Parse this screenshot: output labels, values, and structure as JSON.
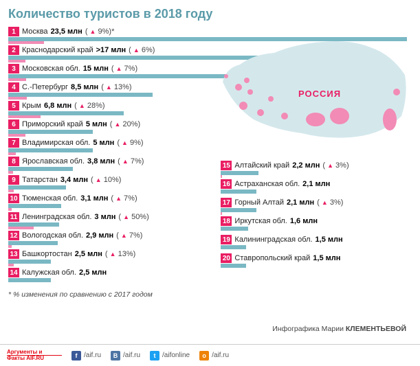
{
  "title": "Количество туристов в 2018 году",
  "max_value": 23.5,
  "bar_colors": {
    "teal": "#7ab8c4",
    "pink": "#f28bb5"
  },
  "rank_bg": "#e91e63",
  "triangle_color": "#e91e63",
  "left": [
    {
      "rank": "1",
      "region": "Москва",
      "value": "23,5",
      "unit": "млн",
      "change": "9%",
      "star": true,
      "bar": 23.5,
      "pink": 2.1
    },
    {
      "rank": "2",
      "region": "Краснодарский край",
      "value": ">17",
      "unit": "млн",
      "change": "6%",
      "bar": 17,
      "pink": 1.0
    },
    {
      "rank": "3",
      "region": "Московская обл.",
      "value": "15",
      "unit": "млн",
      "change": "7%",
      "bar": 15,
      "pink": 1.05
    },
    {
      "rank": "4",
      "region": "С.-Петербург",
      "value": "8,5",
      "unit": "млн",
      "change": "13%",
      "bar": 8.5,
      "pink": 1.1
    },
    {
      "rank": "5",
      "region": "Крым",
      "value": "6,8",
      "unit": "млн",
      "change": "28%",
      "bar": 6.8,
      "pink": 1.9
    },
    {
      "rank": "6",
      "region": "Приморский край",
      "value": "5",
      "unit": "млн",
      "change": "20%",
      "bar": 5,
      "pink": 1.0
    },
    {
      "rank": "7",
      "region": "Владимирская обл.",
      "value": "5",
      "unit": "млн",
      "change": "9%",
      "bar": 5,
      "pink": 0.45
    },
    {
      "rank": "8",
      "region": "Ярославская обл.",
      "value": "3,8",
      "unit": "млн",
      "change": "7%",
      "bar": 3.8,
      "pink": 0.27
    },
    {
      "rank": "9",
      "region": "Татарстан",
      "value": "3,4",
      "unit": "млн",
      "change": "10%",
      "bar": 3.4,
      "pink": 0.34
    },
    {
      "rank": "10",
      "region": "Тюменская обл.",
      "value": "3,1",
      "unit": "млн",
      "change": "7%",
      "bar": 3.1,
      "pink": 0.22
    },
    {
      "rank": "11",
      "region": "Ленинградская обл.",
      "value": "3",
      "unit": "млн",
      "change": "50%",
      "bar": 3,
      "pink": 1.5
    },
    {
      "rank": "12",
      "region": "Вологодская обл.",
      "value": "2,9",
      "unit": "млн",
      "change": "7%",
      "bar": 2.9,
      "pink": 0.2
    },
    {
      "rank": "13",
      "region": "Башкортостан",
      "value": "2,5",
      "unit": "млн",
      "change": "13%",
      "bar": 2.5,
      "pink": 0.33
    },
    {
      "rank": "14",
      "region": "Калужская обл.",
      "value": "2,5",
      "unit": "млн",
      "change": "",
      "bar": 2.5,
      "pink": 0
    }
  ],
  "right": [
    {
      "rank": "15",
      "region": "Алтайский край",
      "value": "2,2",
      "unit": "млн",
      "change": "3%",
      "bar": 2.2,
      "pink": 0.07
    },
    {
      "rank": "16",
      "region": "Астраханская обл.",
      "value": "2,1",
      "unit": "млн",
      "change": "",
      "bar": 2.1,
      "pink": 0
    },
    {
      "rank": "17",
      "region": "Горный Алтай",
      "value": "2,1",
      "unit": "млн",
      "change": "3%",
      "bar": 2.1,
      "pink": 0.06
    },
    {
      "rank": "18",
      "region": "Иркутская обл.",
      "value": "1,6",
      "unit": "млн",
      "change": "",
      "bar": 1.6,
      "pink": 0
    },
    {
      "rank": "19",
      "region": "Калининградская обл.",
      "value": "1,5",
      "unit": "млн",
      "change": "",
      "bar": 1.5,
      "pink": 0
    },
    {
      "rank": "20",
      "region": "Ставропольский край",
      "value": "1,5",
      "unit": "млн",
      "change": "",
      "bar": 1.5,
      "pink": 0
    }
  ],
  "footnote": "* % изменения по сравнению с 2017 годом",
  "credit_label": "Инфографика Марии",
  "credit_name": "КЛЕМЕНТЬЕВОЙ",
  "russia_label": "РОССИЯ",
  "footer": {
    "logo_top": "Аргументы и",
    "logo_bot": "Факты AIF.RU",
    "socials": [
      {
        "icon": "f",
        "cls": "",
        "text": "/aif.ru"
      },
      {
        "icon": "B",
        "cls": "vk",
        "text": "/aif.ru"
      },
      {
        "icon": "t",
        "cls": "tw",
        "text": "/aifonline"
      },
      {
        "icon": "o",
        "cls": "ok",
        "text": "/aif.ru"
      }
    ]
  }
}
